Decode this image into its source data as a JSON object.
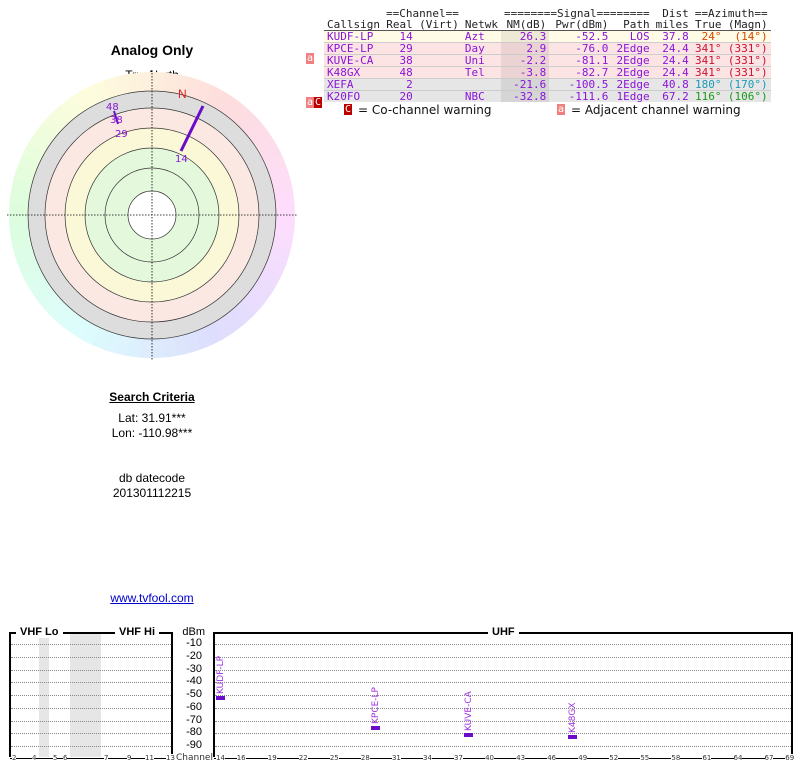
{
  "title": "Analog Only",
  "true_north": "TrueNorth",
  "north_label": "N",
  "table": {
    "group_headers": {
      "channel": "==Channel==",
      "signal": "========Signal========",
      "dist": "Dist",
      "azimuth": "==Azimuth=="
    },
    "headers": [
      "Callsign",
      "Real",
      "(Virt)",
      "Netwk",
      "NM(dB)",
      "Pwr(dBm)",
      "Path",
      "miles",
      "True",
      "(Magn)"
    ],
    "rows": [
      {
        "callsign": "KUDF-LP",
        "real": "14",
        "virt": "",
        "netwk": "Azt",
        "nm": "26.3",
        "pwr": "-52.5",
        "path": "LOS",
        "dist": "37.8",
        "true": "24°",
        "magn": "(14°)",
        "warn": "",
        "bg": "#fffbe6",
        "az_color": "#d24a00"
      },
      {
        "callsign": "KPCE-LP",
        "real": "29",
        "virt": "",
        "netwk": "Day",
        "nm": "2.9",
        "pwr": "-76.0",
        "path": "2Edge",
        "dist": "24.4",
        "true": "341°",
        "magn": "(331°)",
        "warn": "a",
        "bg": "#fde4e4",
        "az_color": "#cc1030"
      },
      {
        "callsign": "KUVE-CA",
        "real": "38",
        "virt": "",
        "netwk": "Uni",
        "nm": "-2.2",
        "pwr": "-81.1",
        "path": "2Edge",
        "dist": "24.4",
        "true": "341°",
        "magn": "(331°)",
        "warn": "",
        "bg": "#fde4e4",
        "az_color": "#cc1030"
      },
      {
        "callsign": "K48GX",
        "real": "48",
        "virt": "",
        "netwk": "Tel",
        "nm": "-3.8",
        "pwr": "-82.7",
        "path": "2Edge",
        "dist": "24.4",
        "true": "341°",
        "magn": "(331°)",
        "warn": "",
        "bg": "#fde4e4",
        "az_color": "#cc1030"
      },
      {
        "callsign": "XEFA",
        "real": "2",
        "virt": "",
        "netwk": "",
        "nm": "-21.6",
        "pwr": "-100.5",
        "path": "2Edge",
        "dist": "40.8",
        "true": "180°",
        "magn": "(170°)",
        "warn": "",
        "bg": "#e6e6e6",
        "az_color": "#1a9ab8"
      },
      {
        "callsign": "K20FO",
        "real": "20",
        "virt": "",
        "netwk": "NBC",
        "nm": "-32.8",
        "pwr": "-111.6",
        "path": "1Edge",
        "dist": "67.2",
        "true": "116°",
        "magn": "(106°)",
        "warn": "aC",
        "bg": "#e6e6e6",
        "az_color": "#1a9a1a"
      }
    ]
  },
  "legend": {
    "co_icon": "C",
    "co_text": "= Co-channel warning",
    "adj_icon": "a",
    "adj_text": "= Adjacent channel warning"
  },
  "polar_labels": [
    {
      "text": "48",
      "az": 341
    },
    {
      "text": "38",
      "az": 341
    },
    {
      "text": "29",
      "az": 341
    },
    {
      "text": "14",
      "az": 24
    }
  ],
  "search": {
    "title": "Search Criteria",
    "lat": "Lat: 31.91***",
    "lon": "Lon: -110.98***",
    "db_label": "db datecode",
    "db_value": "201301112215"
  },
  "link": "www.tvfool.com",
  "spectrum": {
    "bands": {
      "vhf_lo": "VHF Lo",
      "vhf_hi": "VHF Hi",
      "uhf": "UHF"
    },
    "unit": "dBm",
    "y_ticks": [
      "-10",
      "-20",
      "-30",
      "-40",
      "-50",
      "-60",
      "-70",
      "-80",
      "-90"
    ],
    "channel_label": "Channel",
    "vhf_ticks": [
      "2",
      "4",
      "5",
      "6",
      "7",
      "9",
      "11",
      "13"
    ],
    "uhf_ticks": [
      "14",
      "16",
      "19",
      "22",
      "25",
      "28",
      "31",
      "34",
      "37",
      "40",
      "43",
      "46",
      "49",
      "52",
      "55",
      "58",
      "61",
      "64",
      "67",
      "69"
    ],
    "stations": [
      {
        "callsign": "KUDF-LP",
        "channel": 14,
        "dbm": -52.5
      },
      {
        "callsign": "KPCE-LP",
        "channel": 29,
        "dbm": -76.0
      },
      {
        "callsign": "KUVE-CA",
        "channel": 38,
        "dbm": -81.1
      },
      {
        "callsign": "K48GX",
        "channel": 48,
        "dbm": -82.7
      }
    ],
    "bar_color": "#6a0dc8"
  }
}
